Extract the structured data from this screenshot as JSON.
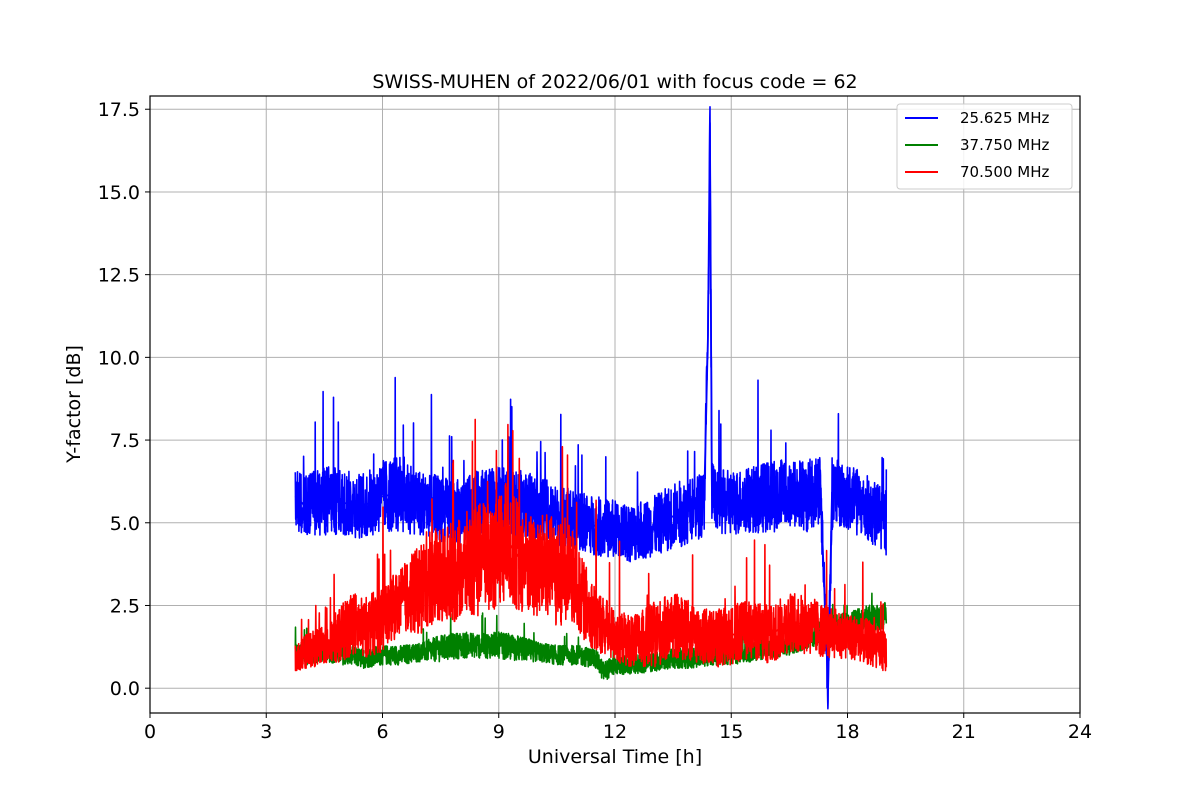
{
  "chart_data": {
    "type": "line",
    "title": "SWISS-MUHEN of 2022/06/01 with focus code = 62",
    "xlabel": "Universal Time [h]",
    "ylabel": "Y-factor [dB]",
    "xlim": [
      0,
      24
    ],
    "ylim": [
      -0.75,
      17.9
    ],
    "xticks": [
      0,
      3,
      6,
      9,
      12,
      15,
      18,
      21,
      24
    ],
    "xtick_labels": [
      "0",
      "3",
      "6",
      "9",
      "12",
      "15",
      "18",
      "21",
      "24"
    ],
    "yticks": [
      0,
      2.5,
      5,
      7.5,
      10,
      12.5,
      15,
      17.5
    ],
    "ytick_labels": [
      "0.0",
      "2.5",
      "5.0",
      "7.5",
      "10.0",
      "12.5",
      "15.0",
      "17.5"
    ],
    "grid": true,
    "legend_position": "upper right",
    "series": [
      {
        "name": "25.625 MHz",
        "color": "#0000ff",
        "x": [
          3.75,
          4.0,
          4.5,
          5.0,
          5.5,
          6.0,
          6.5,
          7.0,
          7.5,
          8.0,
          8.5,
          9.0,
          9.5,
          10.0,
          10.5,
          11.0,
          11.5,
          12.0,
          12.5,
          13.0,
          13.5,
          14.0,
          14.3,
          14.4,
          14.45,
          14.5,
          14.6,
          15.0,
          15.5,
          16.0,
          16.5,
          17.0,
          17.3,
          17.5,
          17.6,
          18.0,
          18.5,
          19.0
        ],
        "values": [
          5.8,
          5.5,
          5.7,
          5.6,
          5.5,
          5.8,
          5.9,
          5.6,
          5.4,
          5.3,
          5.6,
          5.7,
          5.6,
          5.5,
          5.2,
          5.1,
          4.9,
          4.8,
          4.7,
          4.9,
          5.2,
          5.4,
          5.6,
          10.7,
          17.1,
          6.0,
          5.6,
          5.6,
          5.7,
          5.8,
          5.9,
          5.8,
          6.1,
          0.0,
          5.9,
          5.8,
          5.4,
          5.0
        ],
        "band": [
          1.0,
          0.9,
          1.1,
          1.0,
          1.0,
          1.1,
          1.2,
          1.0,
          1.0,
          1.0,
          1.0,
          1.0,
          1.0,
          1.0,
          0.9,
          0.9,
          0.9,
          0.9,
          0.9,
          0.9,
          1.0,
          1.0,
          1.0,
          1.0,
          1.0,
          1.0,
          1.0,
          1.0,
          1.0,
          1.1,
          1.1,
          1.1,
          1.1,
          1.0,
          1.1,
          1.0,
          1.0,
          1.1
        ]
      },
      {
        "name": "37.750 MHz",
        "color": "#008000",
        "x": [
          3.75,
          4.0,
          4.5,
          5.0,
          5.5,
          6.0,
          6.5,
          7.0,
          7.5,
          8.0,
          8.5,
          9.0,
          9.5,
          10.0,
          10.5,
          11.0,
          11.5,
          11.7,
          12.0,
          12.5,
          13.0,
          13.5,
          14.0,
          14.5,
          15.0,
          15.5,
          16.0,
          16.5,
          17.0,
          17.5,
          18.0,
          18.5,
          19.0
        ],
        "values": [
          1.1,
          1.0,
          1.1,
          1.0,
          0.9,
          1.0,
          1.0,
          1.1,
          1.2,
          1.3,
          1.3,
          1.3,
          1.2,
          1.1,
          1.0,
          1.0,
          0.9,
          0.5,
          0.7,
          0.7,
          0.8,
          0.9,
          0.9,
          1.0,
          1.0,
          1.1,
          1.2,
          1.3,
          1.5,
          1.8,
          1.9,
          2.1,
          2.2
        ],
        "band": [
          0.3,
          0.3,
          0.3,
          0.3,
          0.3,
          0.3,
          0.3,
          0.3,
          0.4,
          0.4,
          0.4,
          0.4,
          0.4,
          0.3,
          0.3,
          0.3,
          0.3,
          0.3,
          0.3,
          0.3,
          0.3,
          0.3,
          0.3,
          0.3,
          0.3,
          0.3,
          0.3,
          0.3,
          0.3,
          0.4,
          0.4,
          0.4,
          0.4
        ]
      },
      {
        "name": "70.500 MHz",
        "color": "#ff0000",
        "x": [
          3.75,
          4.0,
          4.5,
          5.0,
          5.2,
          5.5,
          6.0,
          6.5,
          7.0,
          7.2,
          7.5,
          8.0,
          8.5,
          9.0,
          9.2,
          9.5,
          10.0,
          10.2,
          10.5,
          10.8,
          11.0,
          11.5,
          12.0,
          12.5,
          13.0,
          13.5,
          14.0,
          14.5,
          15.0,
          15.5,
          16.0,
          16.5,
          17.0,
          17.5,
          18.0,
          18.5,
          19.0
        ],
        "values": [
          0.9,
          1.1,
          1.3,
          1.7,
          2.0,
          1.8,
          2.1,
          2.7,
          3.0,
          3.4,
          3.3,
          3.6,
          3.9,
          4.1,
          4.5,
          4.0,
          3.5,
          3.8,
          3.4,
          3.6,
          3.0,
          2.1,
          1.6,
          1.4,
          1.6,
          1.9,
          1.7,
          1.5,
          1.6,
          1.8,
          1.6,
          2.0,
          1.9,
          1.7,
          1.6,
          1.4,
          1.1
        ],
        "band": [
          0.4,
          0.5,
          0.6,
          0.9,
          1.0,
          0.9,
          1.0,
          1.0,
          1.4,
          1.5,
          1.5,
          1.6,
          1.7,
          1.7,
          1.8,
          1.7,
          1.5,
          1.6,
          1.6,
          1.6,
          1.3,
          1.0,
          0.8,
          0.8,
          1.0,
          1.0,
          0.9,
          0.9,
          0.9,
          0.9,
          0.9,
          0.9,
          0.9,
          0.8,
          0.7,
          0.7,
          0.6
        ]
      }
    ]
  }
}
